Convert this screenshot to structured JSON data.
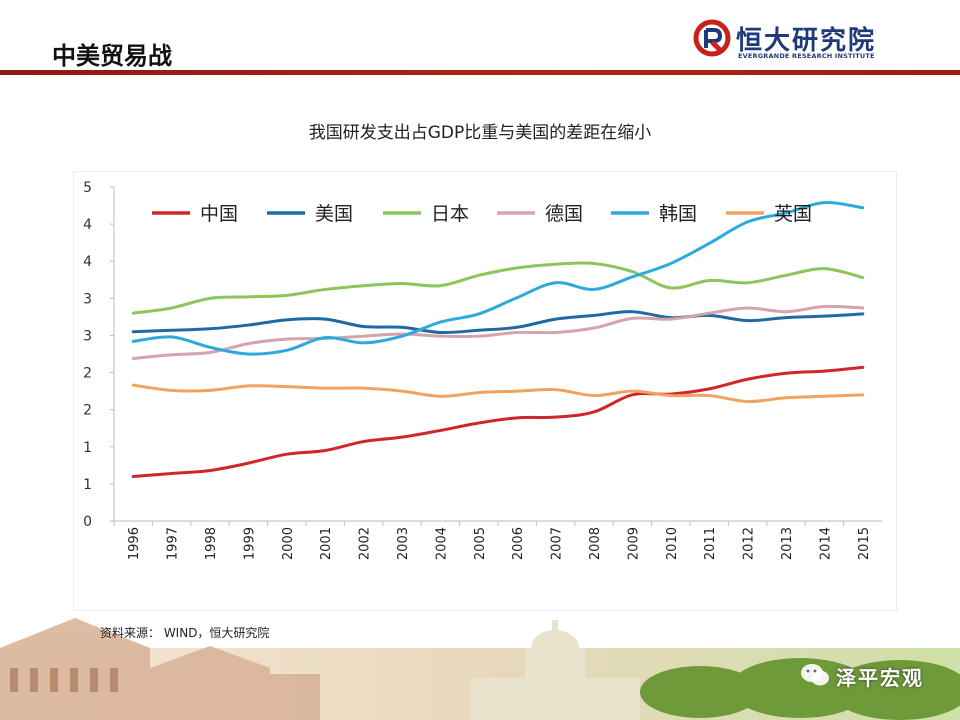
{
  "header": {
    "title": "中美贸易战"
  },
  "logo": {
    "cn": "恒大研究院",
    "en": "EVERGRANDE RESEARCH INSTITUTE"
  },
  "source": "资料来源： WIND，恒大研究院",
  "watermark": {
    "text": "泽平宏观"
  },
  "colors": {
    "header_bar": "#a11f14",
    "logo_red": "#c8201a",
    "logo_blue": "#1f3a78"
  },
  "chart_data": {
    "type": "line",
    "title": "我国研发支出占GDP比重与美国的差距在缩小",
    "x": [
      "1996",
      "1997",
      "1998",
      "1999",
      "2000",
      "2001",
      "2002",
      "2003",
      "2004",
      "2005",
      "2006",
      "2007",
      "2008",
      "2009",
      "2010",
      "2011",
      "2012",
      "2013",
      "2014",
      "2015"
    ],
    "yticks": [
      "0",
      "1",
      "1",
      "2",
      "2",
      "3",
      "3",
      "4",
      "4",
      "5"
    ],
    "ylim": [
      0,
      4.5
    ],
    "grid": false,
    "legend_position": "top",
    "series": [
      {
        "name": "中国",
        "color": "#d0262a",
        "values": [
          0.6,
          0.64,
          0.68,
          0.78,
          0.9,
          0.95,
          1.07,
          1.13,
          1.22,
          1.32,
          1.39,
          1.4,
          1.47,
          1.7,
          1.71,
          1.78,
          1.91,
          1.99,
          2.02,
          2.07
        ]
      },
      {
        "name": "美国",
        "color": "#1f6aa5",
        "values": [
          2.55,
          2.57,
          2.59,
          2.64,
          2.71,
          2.72,
          2.62,
          2.61,
          2.54,
          2.57,
          2.61,
          2.72,
          2.77,
          2.82,
          2.74,
          2.77,
          2.7,
          2.74,
          2.76,
          2.79
        ]
      },
      {
        "name": "日本",
        "color": "#8cc65a",
        "values": [
          2.8,
          2.87,
          3.0,
          3.02,
          3.04,
          3.12,
          3.17,
          3.2,
          3.17,
          3.31,
          3.41,
          3.46,
          3.47,
          3.36,
          3.14,
          3.24,
          3.21,
          3.31,
          3.4,
          3.28
        ]
      },
      {
        "name": "德国",
        "color": "#d4a4ac",
        "values": [
          2.19,
          2.24,
          2.27,
          2.39,
          2.45,
          2.46,
          2.49,
          2.52,
          2.49,
          2.49,
          2.54,
          2.54,
          2.6,
          2.73,
          2.72,
          2.8,
          2.87,
          2.82,
          2.89,
          2.87
        ]
      },
      {
        "name": "韩国",
        "color": "#2ea9dd",
        "values": [
          2.42,
          2.48,
          2.34,
          2.25,
          2.3,
          2.47,
          2.4,
          2.49,
          2.68,
          2.79,
          3.01,
          3.21,
          3.12,
          3.29,
          3.47,
          3.74,
          4.03,
          4.15,
          4.29,
          4.22
        ]
      },
      {
        "name": "英国",
        "color": "#f0a35e",
        "values": [
          1.83,
          1.76,
          1.76,
          1.82,
          1.81,
          1.79,
          1.79,
          1.75,
          1.68,
          1.73,
          1.75,
          1.77,
          1.69,
          1.75,
          1.69,
          1.69,
          1.61,
          1.66,
          1.68,
          1.7
        ]
      }
    ]
  }
}
